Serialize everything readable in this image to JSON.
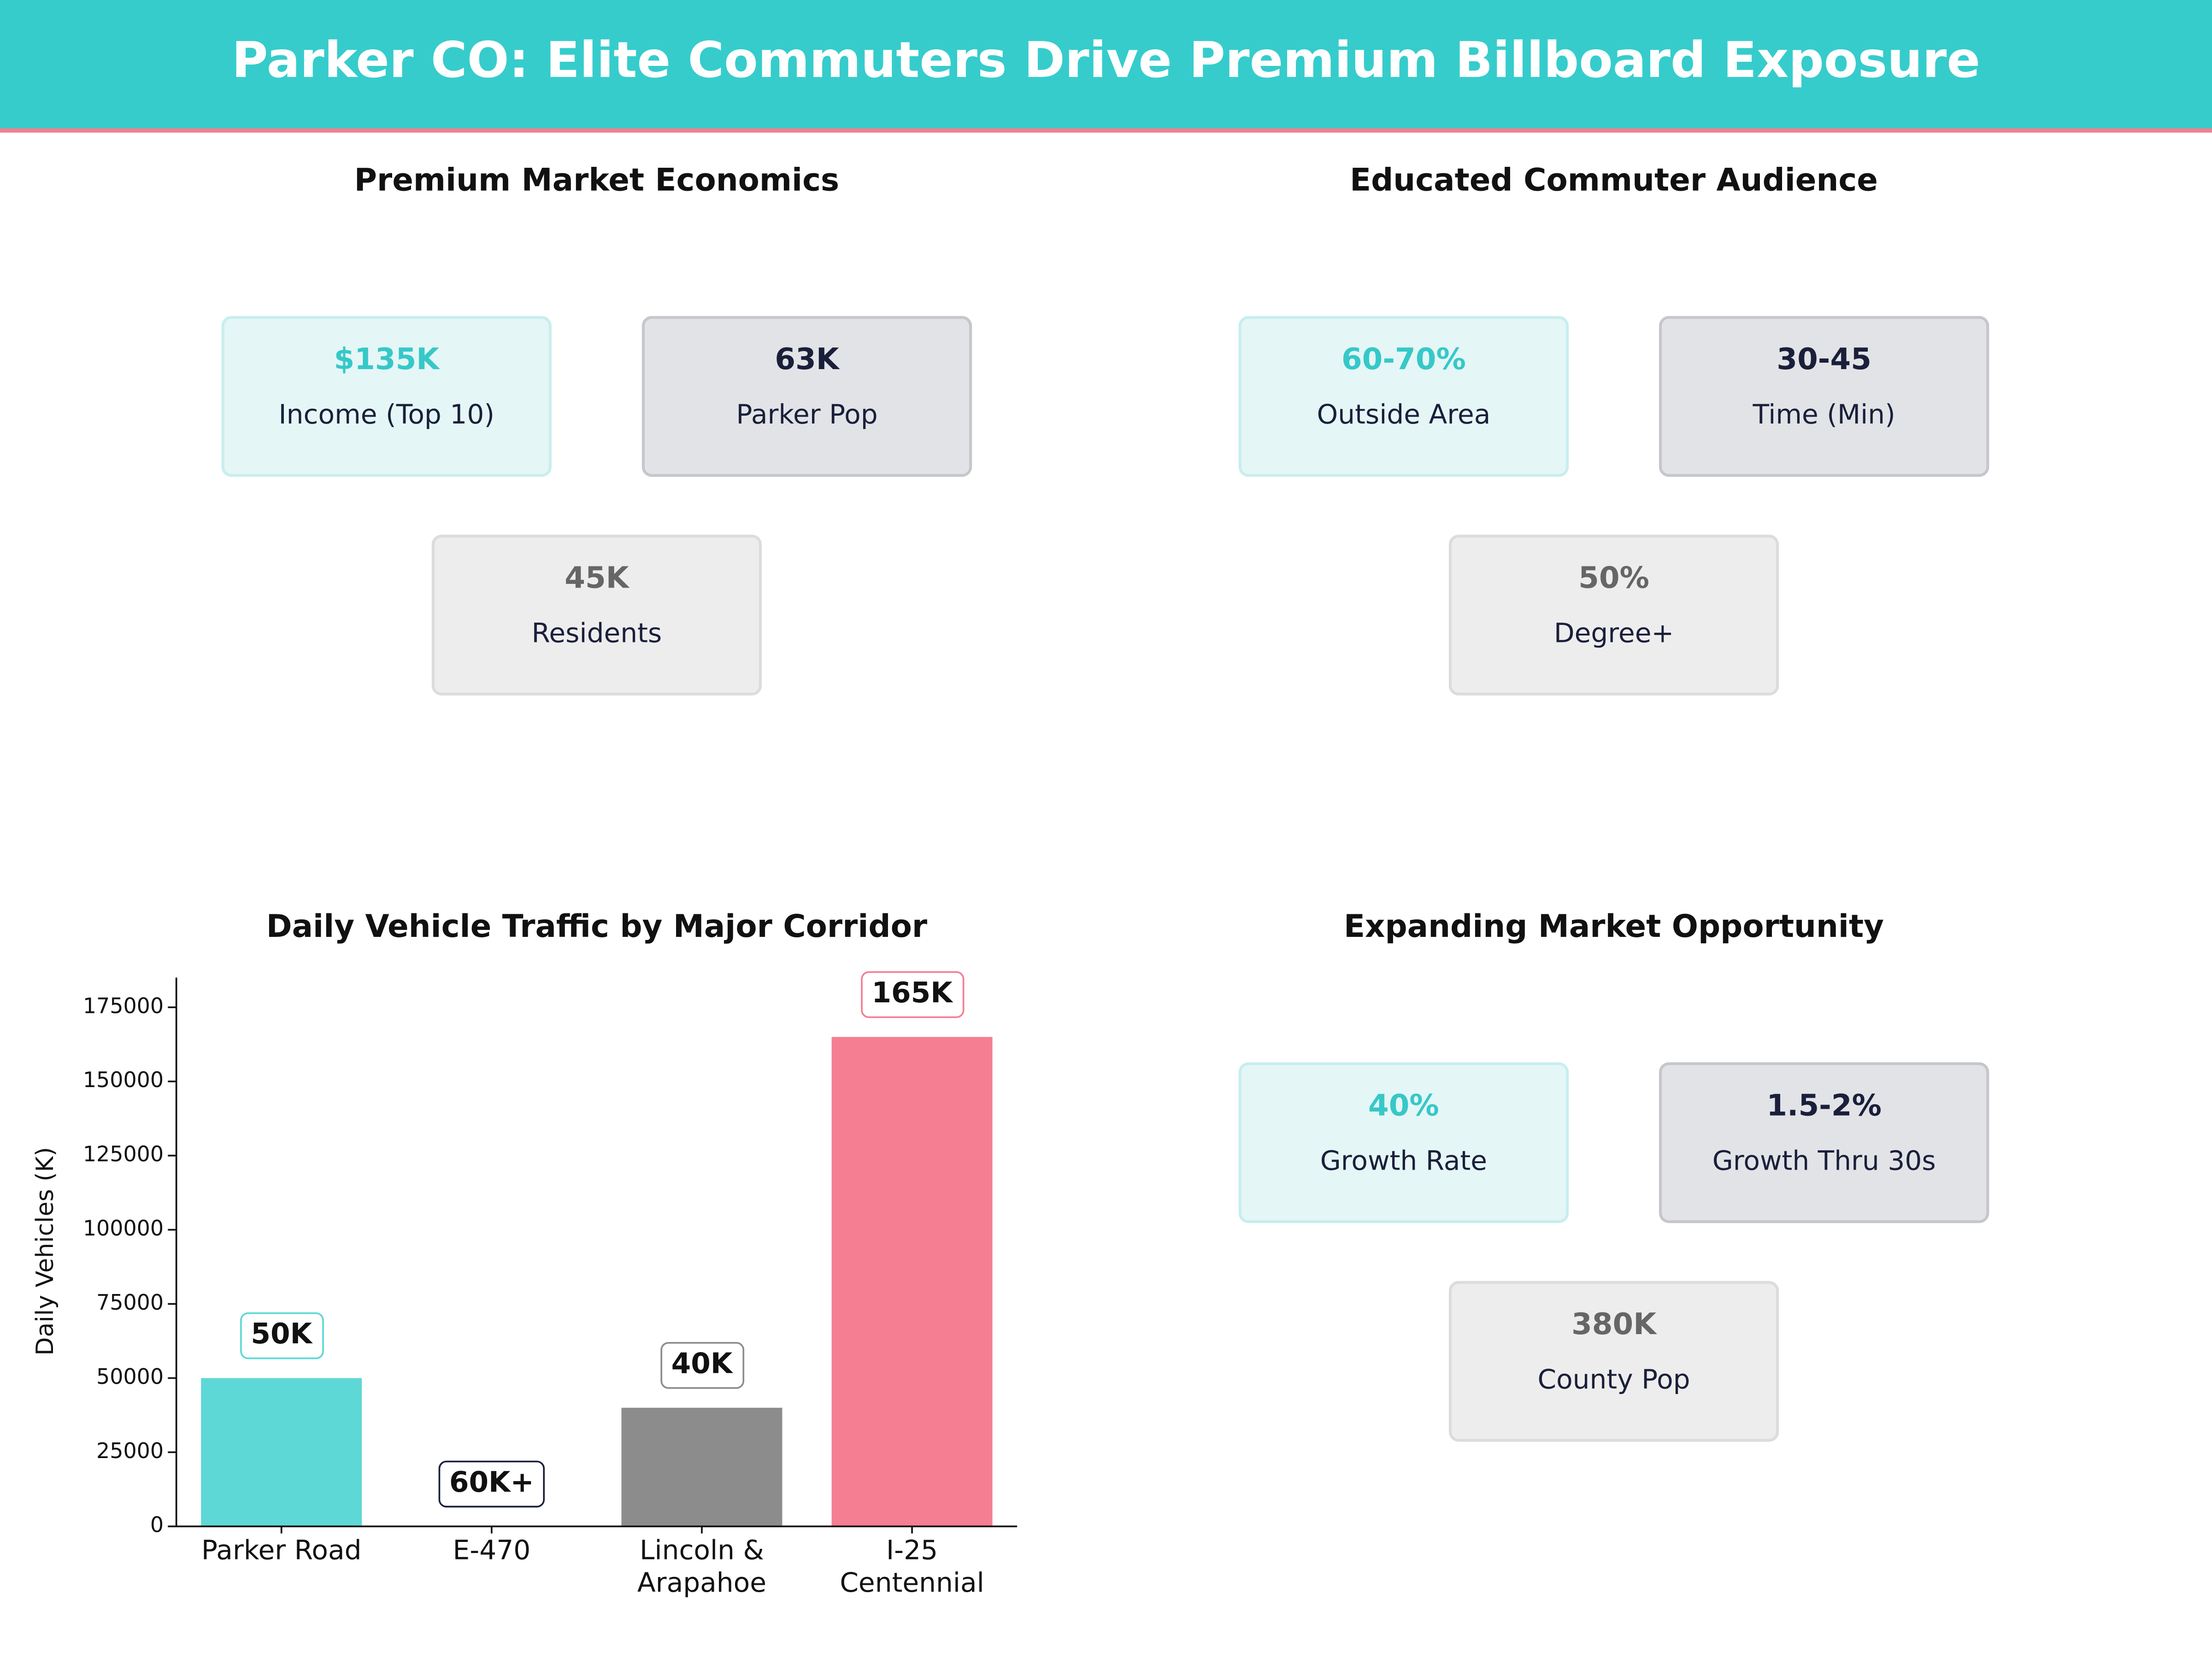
{
  "header": {
    "title": "Parker CO: Elite Commuters Drive Premium Billboard Exposure"
  },
  "panels": [
    {
      "title": "Premium Market Economics",
      "cards": [
        {
          "value": "$135K",
          "label": "Income (Top 10)"
        },
        {
          "value": "63K",
          "label": "Parker Pop"
        },
        {
          "value": "45K",
          "label": "Residents"
        }
      ]
    },
    {
      "title": "Educated Commuter Audience",
      "cards": [
        {
          "value": "60-70%",
          "label": "Outside Area"
        },
        {
          "value": "30-45",
          "label": "Time (Min)"
        },
        {
          "value": "50%",
          "label": "Degree+"
        }
      ]
    },
    {
      "title": "Expanding Market Opportunity",
      "cards": [
        {
          "value": "40%",
          "label": "Growth Rate"
        },
        {
          "value": "1.5-2%",
          "label": "Growth Thru 30s"
        },
        {
          "value": "380K",
          "label": "County Pop"
        }
      ]
    }
  ],
  "chart_data": {
    "type": "bar",
    "title": "Daily Vehicle Traffic by Major Corridor",
    "ylabel": "Daily Vehicles (K)",
    "categories": [
      "Parker Road",
      "E-470",
      "Lincoln &\nArapahoe",
      "I-25\nCentennial"
    ],
    "values": [
      50000,
      null,
      40000,
      165000
    ],
    "value_labels": [
      "50K",
      "60K+",
      "40K",
      "165K"
    ],
    "colors": [
      "#5dd8d6",
      "#1a1f3a",
      "#8c8c8c",
      "#f57e92"
    ],
    "ylim": [
      0,
      185000
    ],
    "yticks": [
      0,
      25000,
      50000,
      75000,
      100000,
      125000,
      150000,
      175000
    ]
  }
}
